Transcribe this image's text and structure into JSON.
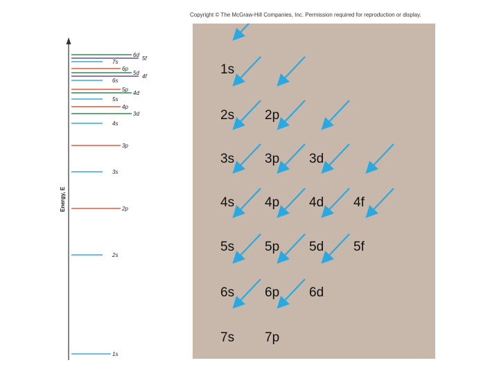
{
  "copyright": "Copyright © The McGraw-Hill Companies, Inc. Permission required for reproduction or display.",
  "energy_axis_label": "Energy, E",
  "energy_levels": [
    {
      "label": "1s",
      "color": "#35a8d8"
    },
    {
      "label": "2s",
      "color": "#35a8d8"
    },
    {
      "label": "2p",
      "color": "#e05a3a"
    },
    {
      "label": "3s",
      "color": "#35a8d8"
    },
    {
      "label": "3p",
      "color": "#e05a3a"
    },
    {
      "label": "4s",
      "color": "#35a8d8"
    },
    {
      "label": "3d",
      "color": "#2e8a4e"
    },
    {
      "label": "4p",
      "color": "#e05a3a"
    },
    {
      "label": "5s",
      "color": "#35a8d8"
    },
    {
      "label": "4d",
      "color": "#2e8a4e"
    },
    {
      "label": "5p",
      "color": "#e05a3a"
    },
    {
      "label": "6s",
      "color": "#35a8d8"
    },
    {
      "label": "4f",
      "color": "#6a4a9a"
    },
    {
      "label": "5d",
      "color": "#2e8a4e"
    },
    {
      "label": "6p",
      "color": "#e05a3a"
    },
    {
      "label": "7s",
      "color": "#35a8d8"
    },
    {
      "label": "5f",
      "color": "#6a4a9a"
    },
    {
      "label": "6d",
      "color": "#2e8a4e"
    }
  ],
  "aufbau_grid": {
    "rows": [
      [
        "1s"
      ],
      [
        "2s",
        "2p"
      ],
      [
        "3s",
        "3p",
        "3d"
      ],
      [
        "4s",
        "4p",
        "4d",
        "4f"
      ],
      [
        "5s",
        "5p",
        "5d",
        "5f"
      ],
      [
        "6s",
        "6p",
        "6d"
      ],
      [
        "7s",
        "7p"
      ]
    ],
    "arrow_color": "#2aa8e0",
    "panel_color": "#c8b8ab"
  }
}
